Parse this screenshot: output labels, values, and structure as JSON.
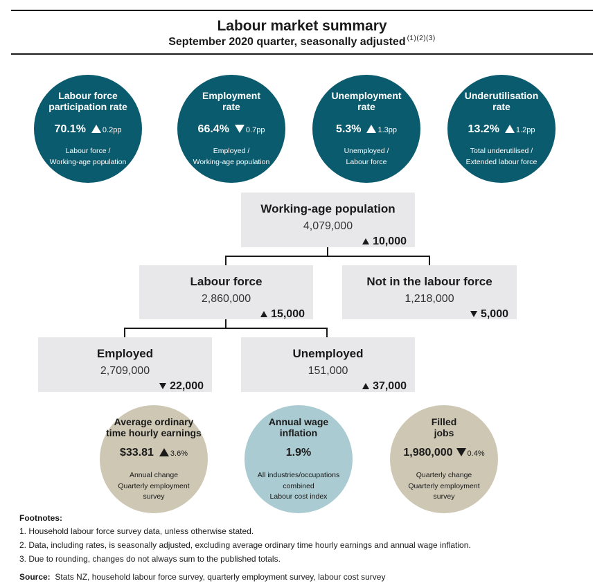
{
  "header": {
    "title": "Labour market summary",
    "subtitle": "September 2020 quarter, seasonally adjusted",
    "footnote_refs": "(1)(2)(3)"
  },
  "rate_circles": [
    {
      "title": "Labour force participation rate",
      "title_l1": "Labour force",
      "title_l2": "participation rate",
      "value": "70.1%",
      "direction": "up",
      "change": "0.2pp",
      "desc_l1": "Labour force /",
      "desc_l2": "Working-age population"
    },
    {
      "title": "Employment rate",
      "title_l1": "Employment",
      "title_l2": "rate",
      "value": "66.4%",
      "direction": "down",
      "change": "0.7pp",
      "desc_l1": "Employed /",
      "desc_l2": "Working-age population"
    },
    {
      "title": "Unemployment rate",
      "title_l1": "Unemployment",
      "title_l2": "rate",
      "value": "5.3%",
      "direction": "up",
      "change": "1.3pp",
      "desc_l1": "Unemployed /",
      "desc_l2": "Labour force"
    },
    {
      "title": "Underutilisation rate",
      "title_l1": "Underutilisation",
      "title_l2": "rate",
      "value": "13.2%",
      "direction": "up",
      "change": "1.2pp",
      "desc_l1": "Total underutilised /",
      "desc_l2": "Extended labour force"
    }
  ],
  "tree": {
    "working_age": {
      "title": "Working-age population",
      "value": "4,079,000",
      "direction": "up",
      "change": "10,000"
    },
    "labour_force": {
      "title": "Labour force",
      "value": "2,860,000",
      "direction": "up",
      "change": "15,000"
    },
    "not_in_labour_force": {
      "title": "Not in the labour force",
      "value": "1,218,000",
      "direction": "down",
      "change": "5,000"
    },
    "employed": {
      "title": "Employed",
      "value": "2,709,000",
      "direction": "down",
      "change": "22,000"
    },
    "unemployed": {
      "title": "Unemployed",
      "value": "151,000",
      "direction": "up",
      "change": "37,000"
    }
  },
  "bottom_circles": [
    {
      "title_l1": "Average ordinary",
      "title_l2": "time hourly earnings",
      "value": "$33.81",
      "direction": "up",
      "change": "3.6%",
      "desc_l1": "Annual change",
      "desc_l2": "Quarterly employment",
      "desc_l3": "survey",
      "color": "#cdc7b4"
    },
    {
      "title_l1": "Annual wage",
      "title_l2": "inflation",
      "value": "1.9%",
      "direction": "none",
      "change": "",
      "desc_l1": "All industries/occupations",
      "desc_l2": "combined",
      "desc_l3": "Labour cost index",
      "color": "#aacbd1"
    },
    {
      "title_l1": "Filled",
      "title_l2": "jobs",
      "value": "1,980,000",
      "direction": "down",
      "change": "0.4%",
      "desc_l1": "Quarterly change",
      "desc_l2": "Quarterly employment",
      "desc_l3": "survey",
      "color": "#cdc7b4"
    }
  ],
  "footnotes": {
    "heading": "Footnotes:",
    "items": [
      "1. Household labour force survey data, unless otherwise stated.",
      "2. Data, including rates, is seasonally adjusted, excluding average ordinary time hourly earnings and annual wage inflation.",
      "3. Due to rounding, changes do not always sum to the published totals."
    ],
    "source_label": "Source:",
    "source_text": "Stats NZ, household labour force survey, quarterly employment survey, labour cost survey"
  },
  "colors": {
    "teal": "#0b5b6e",
    "box": "#e8e8ea",
    "khaki": "#cdc7b4",
    "light_blue": "#aacbd1"
  }
}
